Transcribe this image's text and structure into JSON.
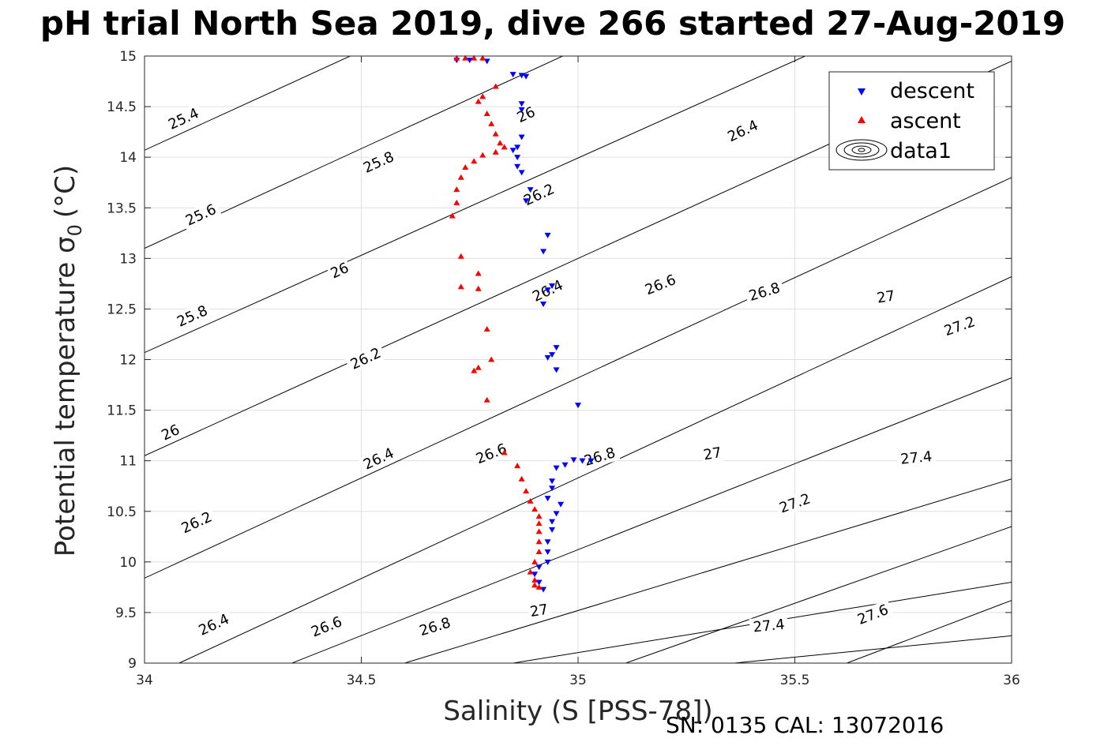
{
  "chart_data": {
    "type": "scatter",
    "title": "pH trial North Sea 2019, dive 266 started 27-Aug-2019",
    "xlabel": "Salinity (S [PSS-78])",
    "ylabel": "Potential temperature σ",
    "ylabel_subscript": "0",
    "ylabel_unit": "(°C)",
    "footer": "SN: 0135  CAL: 13072016",
    "xlim": [
      34,
      36
    ],
    "ylim": [
      9,
      15
    ],
    "x_ticks": [
      34,
      34.5,
      35,
      35.5,
      36
    ],
    "x_tick_labels": [
      "34",
      "34.5",
      "35",
      "35.5",
      "36"
    ],
    "y_ticks": [
      9,
      9.5,
      10,
      10.5,
      11,
      11.5,
      12,
      12.5,
      13,
      13.5,
      14,
      14.5,
      15
    ],
    "y_tick_labels": [
      "9",
      "9.5",
      "10",
      "10.5",
      "11",
      "11.5",
      "12",
      "12.5",
      "13",
      "13.5",
      "14",
      "14.5",
      "15"
    ],
    "grid": true,
    "legend_position": "top-right",
    "legend": [
      {
        "label": "descent",
        "marker": "triangle-down",
        "color": "#0000ff"
      },
      {
        "label": "ascent",
        "marker": "triangle-up",
        "color": "#ff0000"
      },
      {
        "label": "data1",
        "marker": "contour",
        "color": "#000000"
      }
    ],
    "contours": [
      {
        "level": 25.4,
        "line": [
          [
            33.99,
            14.05
          ],
          [
            34.5,
            15.05
          ]
        ],
        "labels": [
          {
            "label": "25.4",
            "x": 34.09,
            "y": 14.38
          }
        ]
      },
      {
        "level": 25.6,
        "line": [
          [
            33.99,
            13.08
          ],
          [
            34.99,
            15.05
          ]
        ],
        "labels": [
          {
            "label": "25.6",
            "x": 34.13,
            "y": 13.43
          }
        ]
      },
      {
        "level": 25.8,
        "line": [
          [
            33.99,
            12.05
          ],
          [
            35.55,
            15.05
          ]
        ],
        "labels": [
          {
            "label": "25.8",
            "x": 34.11,
            "y": 12.43
          },
          {
            "label": "25.8",
            "x": 34.54,
            "y": 13.95
          }
        ]
      },
      {
        "level": 26.0,
        "line": [
          [
            33.99,
            11.03
          ],
          [
            36.0,
            14.95
          ]
        ],
        "labels": [
          {
            "label": "26",
            "x": 34.06,
            "y": 11.28
          },
          {
            "label": "26",
            "x": 34.45,
            "y": 12.88
          },
          {
            "label": "26",
            "x": 34.88,
            "y": 14.42
          }
        ]
      },
      {
        "level": 26.2,
        "line": [
          [
            33.99,
            9.82
          ],
          [
            36.0,
            13.8
          ]
        ],
        "labels": [
          {
            "label": "26.2",
            "x": 34.12,
            "y": 10.39
          },
          {
            "label": "26.2",
            "x": 34.51,
            "y": 12.01
          },
          {
            "label": "26.2",
            "x": 34.91,
            "y": 13.63
          }
        ]
      },
      {
        "level": 26.4,
        "line": [
          [
            34.08,
            9.0
          ],
          [
            36.0,
            12.82
          ]
        ],
        "labels": [
          {
            "label": "26.4",
            "x": 34.16,
            "y": 9.38
          },
          {
            "label": "26.4",
            "x": 34.54,
            "y": 11.02
          },
          {
            "label": "26.4",
            "x": 34.93,
            "y": 12.68
          },
          {
            "label": "26.4",
            "x": 35.38,
            "y": 14.26
          }
        ]
      },
      {
        "level": 26.6,
        "line": [
          [
            34.34,
            9.0
          ],
          [
            36.0,
            11.82
          ]
        ],
        "labels": [
          {
            "label": "26.6",
            "x": 34.42,
            "y": 9.36
          },
          {
            "label": "26.6",
            "x": 34.8,
            "y": 11.07
          },
          {
            "label": "26.6",
            "x": 35.19,
            "y": 12.74
          }
        ]
      },
      {
        "level": 26.8,
        "line": [
          [
            34.6,
            9.0
          ],
          [
            36.0,
            10.82
          ]
        ],
        "labels": [
          {
            "label": "26.8",
            "x": 34.67,
            "y": 9.36
          },
          {
            "label": "26.8",
            "x": 35.05,
            "y": 11.04
          },
          {
            "label": "26.8",
            "x": 35.43,
            "y": 12.67
          }
        ]
      },
      {
        "level": 27.0,
        "line": [
          [
            34.85,
            9.0
          ],
          [
            36.0,
            9.8
          ]
        ],
        "labels": [
          {
            "label": "27",
            "x": 34.91,
            "y": 9.52
          },
          {
            "label": "27",
            "x": 35.31,
            "y": 11.07
          },
          {
            "label": "27",
            "x": 35.71,
            "y": 12.62
          }
        ]
      },
      {
        "level": 27.2,
        "line": [
          [
            35.11,
            9.0
          ],
          [
            36.0,
            10.35
          ]
        ],
        "labels": [
          {
            "label": "27.2",
            "x": 35.5,
            "y": 10.58
          },
          {
            "label": "27.2",
            "x": 35.88,
            "y": 12.33
          }
        ]
      },
      {
        "level": 27.4,
        "line": [
          [
            35.36,
            9.0
          ],
          [
            36.0,
            9.27
          ]
        ],
        "labels": [
          {
            "label": "27.4",
            "x": 35.44,
            "y": 9.37
          },
          {
            "label": "27.4",
            "x": 35.78,
            "y": 11.03
          }
        ]
      },
      {
        "level": 27.6,
        "line": [
          [
            35.62,
            9.0
          ],
          [
            36.0,
            9.62
          ]
        ],
        "labels": [
          {
            "label": "27.6",
            "x": 35.68,
            "y": 9.48
          }
        ]
      }
    ],
    "series": [
      {
        "name": "descent",
        "marker": "triangle-down",
        "color": "#0000ff",
        "points": [
          [
            34.72,
            14.96
          ],
          [
            34.75,
            14.96
          ],
          [
            34.79,
            14.95
          ],
          [
            34.85,
            14.82
          ],
          [
            34.87,
            14.81
          ],
          [
            34.88,
            14.8
          ],
          [
            34.87,
            14.53
          ],
          [
            34.87,
            14.47
          ],
          [
            34.87,
            14.2
          ],
          [
            34.86,
            14.1
          ],
          [
            34.85,
            14.07
          ],
          [
            34.86,
            14.0
          ],
          [
            34.86,
            13.91
          ],
          [
            34.87,
            13.85
          ],
          [
            34.89,
            13.68
          ],
          [
            34.88,
            13.57
          ],
          [
            34.93,
            13.23
          ],
          [
            34.92,
            13.07
          ],
          [
            34.94,
            12.73
          ],
          [
            34.93,
            12.69
          ],
          [
            34.92,
            12.55
          ],
          [
            34.95,
            12.12
          ],
          [
            34.94,
            12.05
          ],
          [
            34.93,
            12.02
          ],
          [
            34.95,
            11.9
          ],
          [
            35.0,
            11.55
          ],
          [
            34.99,
            11.01
          ],
          [
            35.01,
            11.0
          ],
          [
            35.03,
            11.0
          ],
          [
            34.97,
            10.96
          ],
          [
            34.95,
            10.93
          ],
          [
            34.94,
            10.8
          ],
          [
            34.94,
            10.73
          ],
          [
            34.93,
            10.63
          ],
          [
            34.96,
            10.57
          ],
          [
            34.95,
            10.48
          ],
          [
            34.94,
            10.4
          ],
          [
            34.94,
            10.32
          ],
          [
            34.93,
            10.2
          ],
          [
            34.93,
            10.1
          ],
          [
            34.93,
            10.0
          ],
          [
            34.91,
            9.95
          ],
          [
            34.9,
            9.88
          ],
          [
            34.91,
            9.8
          ],
          [
            34.92,
            9.73
          ]
        ]
      },
      {
        "name": "ascent",
        "marker": "triangle-up",
        "color": "#ff0000",
        "points": [
          [
            34.72,
            14.98
          ],
          [
            34.74,
            14.98
          ],
          [
            34.76,
            14.98
          ],
          [
            34.78,
            14.98
          ],
          [
            34.81,
            14.7
          ],
          [
            34.78,
            14.6
          ],
          [
            34.77,
            14.55
          ],
          [
            34.79,
            14.43
          ],
          [
            34.8,
            14.33
          ],
          [
            34.81,
            14.23
          ],
          [
            34.82,
            14.14
          ],
          [
            34.83,
            14.1
          ],
          [
            34.81,
            14.05
          ],
          [
            34.78,
            14.02
          ],
          [
            34.76,
            13.96
          ],
          [
            34.74,
            13.9
          ],
          [
            34.73,
            13.8
          ],
          [
            34.72,
            13.68
          ],
          [
            34.72,
            13.55
          ],
          [
            34.71,
            13.42
          ],
          [
            34.73,
            13.02
          ],
          [
            34.77,
            12.85
          ],
          [
            34.73,
            12.72
          ],
          [
            34.77,
            12.7
          ],
          [
            34.79,
            12.3
          ],
          [
            34.8,
            12.0
          ],
          [
            34.77,
            11.92
          ],
          [
            34.76,
            11.89
          ],
          [
            34.79,
            11.6
          ],
          [
            34.83,
            11.08
          ],
          [
            34.86,
            10.95
          ],
          [
            34.87,
            10.82
          ],
          [
            34.88,
            10.7
          ],
          [
            34.89,
            10.6
          ],
          [
            34.9,
            10.52
          ],
          [
            34.91,
            10.45
          ],
          [
            34.91,
            10.38
          ],
          [
            34.91,
            10.3
          ],
          [
            34.91,
            10.2
          ],
          [
            34.91,
            10.1
          ],
          [
            34.9,
            10.0
          ],
          [
            34.89,
            9.9
          ],
          [
            34.9,
            9.82
          ],
          [
            34.9,
            9.77
          ],
          [
            34.91,
            9.75
          ]
        ]
      }
    ]
  }
}
